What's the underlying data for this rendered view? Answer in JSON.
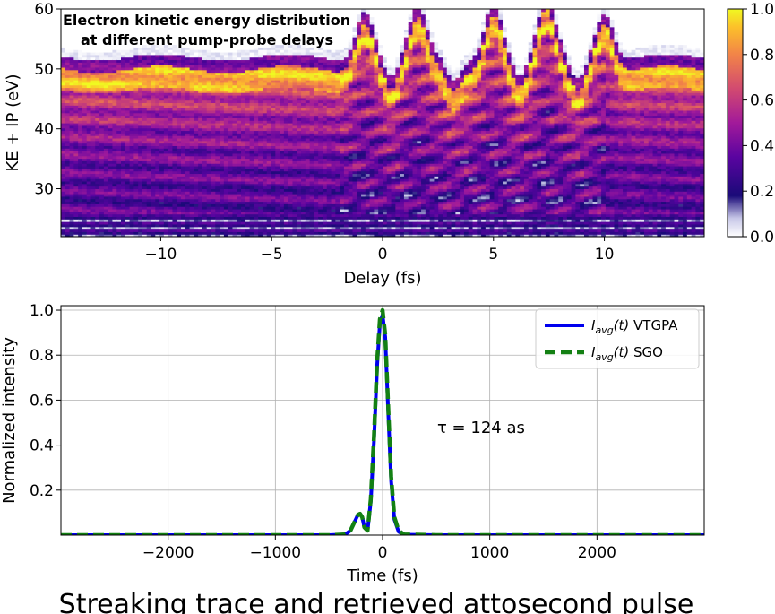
{
  "chart_data": [
    {
      "type": "heatmap",
      "title_line1": "Electron kinetic energy distribution",
      "title_line2": "at different pump-probe delays",
      "xlabel": "Delay (fs)",
      "ylabel": "KE + IP (eV)",
      "xlim": [
        -14.5,
        14.5
      ],
      "ylim": [
        22,
        60
      ],
      "xticks": [
        -10,
        -5,
        0,
        5,
        10
      ],
      "xtick_labels": [
        "−10",
        "−5",
        "0",
        "5",
        "10"
      ],
      "yticks": [
        30,
        40,
        50,
        60
      ],
      "ytick_labels": [
        "30",
        "40",
        "50",
        "60"
      ],
      "colormap": "plasma",
      "colorbar": {
        "range": [
          0,
          1
        ],
        "ticks": [
          0,
          0.2,
          0.4,
          0.6,
          0.8,
          1.0
        ],
        "tick_labels": [
          "0.0",
          "0.2",
          "0.4",
          "0.6",
          "0.8",
          "1.0"
        ]
      },
      "peak_delays_fs": [
        -0.8,
        1.6,
        5.0,
        7.4,
        10.0
      ],
      "grid": false
    },
    {
      "type": "line",
      "xlabel": "Time (fs)",
      "ylabel": "Normalized intensity",
      "xlim": [
        -3000,
        3000
      ],
      "ylim": [
        0,
        1.02
      ],
      "xticks": [
        -2000,
        -1000,
        0,
        1000,
        2000
      ],
      "xtick_labels": [
        "−2000",
        "−1000",
        "0",
        "1000",
        "2000"
      ],
      "yticks": [
        0.2,
        0.4,
        0.6,
        0.8,
        1.0
      ],
      "ytick_labels": [
        "0.2",
        "0.4",
        "0.6",
        "0.8",
        "1.0"
      ],
      "grid": true,
      "legend_position": "top-right",
      "annotation": "τ = 124 as",
      "series": [
        {
          "name": "VTGPA",
          "legend_prefix": "I",
          "legend_sub": "avg",
          "legend_arg": "(t)",
          "color": "#0000ee",
          "style": "solid",
          "x": [
            -3000,
            -500,
            -350,
            -300,
            -260,
            -230,
            -210,
            -190,
            -170,
            -140,
            -110,
            -80,
            -50,
            -25,
            0,
            25,
            50,
            80,
            110,
            150,
            200,
            500,
            3000
          ],
          "y": [
            0,
            0,
            0.003,
            0.02,
            0.06,
            0.09,
            0.095,
            0.08,
            0.035,
            0.02,
            0.15,
            0.42,
            0.76,
            0.94,
            0.98,
            0.88,
            0.58,
            0.24,
            0.07,
            0.015,
            0.002,
            0,
            0
          ]
        },
        {
          "name": "SGO",
          "legend_prefix": "I",
          "legend_sub": "avg",
          "legend_arg": "(t)",
          "color": "#138013",
          "style": "dashed",
          "x": [
            -3000,
            -500,
            -350,
            -300,
            -260,
            -230,
            -210,
            -190,
            -170,
            -140,
            -110,
            -80,
            -50,
            -25,
            0,
            25,
            50,
            80,
            110,
            150,
            200,
            500,
            3000
          ],
          "y": [
            0,
            0,
            0.003,
            0.02,
            0.06,
            0.09,
            0.095,
            0.08,
            0.035,
            0.02,
            0.16,
            0.44,
            0.78,
            0.96,
            1.0,
            0.89,
            0.6,
            0.26,
            0.08,
            0.02,
            0.003,
            0,
            0
          ]
        }
      ]
    }
  ],
  "suptitle": "Streaking trace and retrieved attosecond pulse"
}
